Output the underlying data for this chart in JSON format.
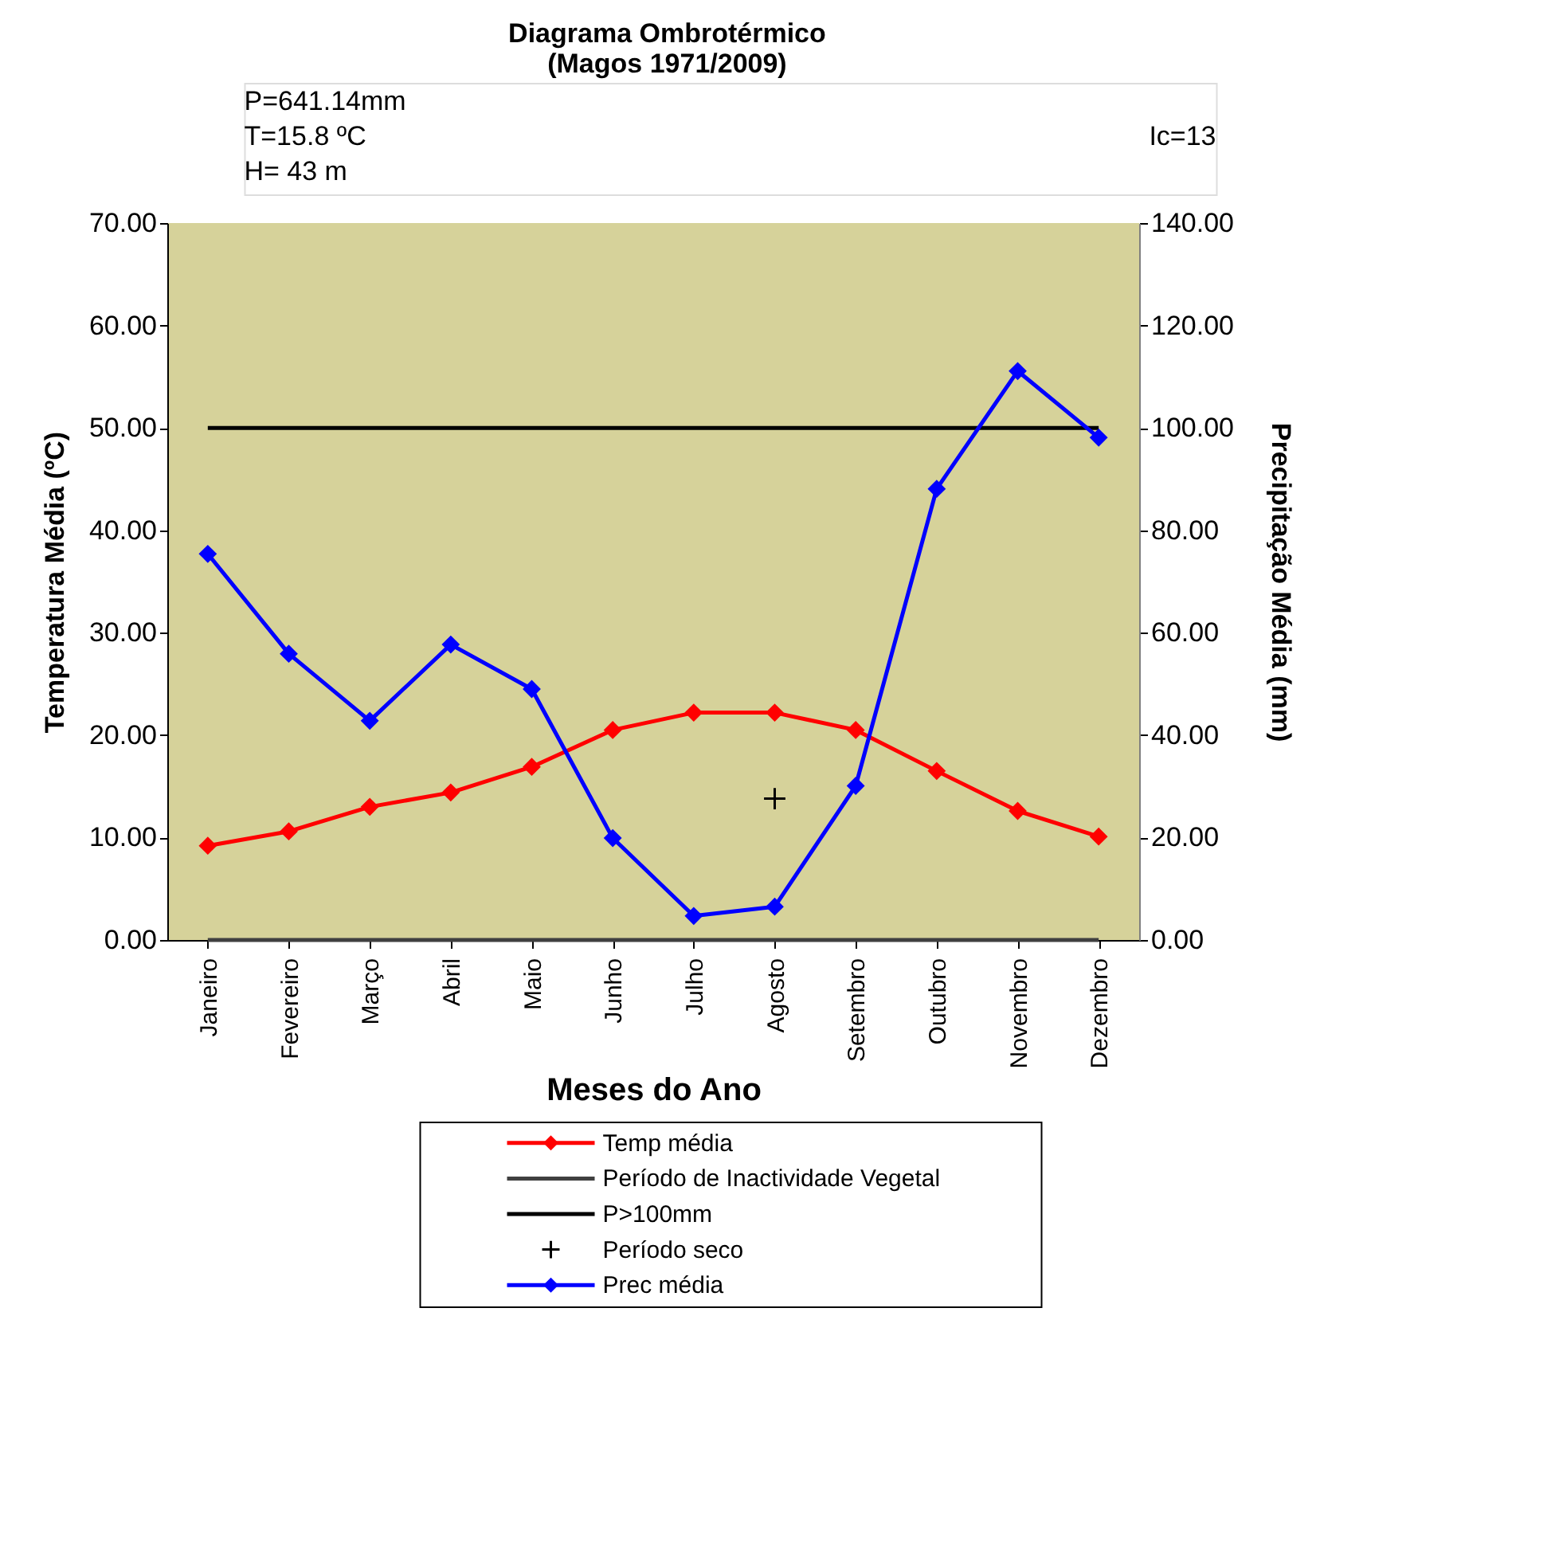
{
  "chart_data": {
    "type": "line",
    "title": "Diagrama Ombrotérmico",
    "subtitle": "(Magos 1971/2009)",
    "xlabel": "Meses do Ano",
    "ylabel": "Temperatura Média (ºC)",
    "y2label": "Precipitação Média (mm)",
    "annotations": [
      "P=641.14mm",
      "T=15.8 ºC",
      "H= 43 m",
      "Ic=13"
    ],
    "categories": [
      "Janeiro",
      "Fevereiro",
      "Março",
      "Abril",
      "Maio",
      "Junho",
      "Julho",
      "Agosto",
      "Setembro",
      "Outubro",
      "Novembro",
      "Dezembro"
    ],
    "series": [
      {
        "name": "Temp média",
        "type": "line",
        "color": "#ff0000",
        "marker": "diamond",
        "values": [
          9.2,
          10.6,
          13.0,
          14.4,
          16.9,
          20.5,
          22.2,
          22.2,
          20.5,
          16.5,
          12.6,
          10.1
        ]
      },
      {
        "name": "Período de Inactividade Vegetal",
        "type": "line",
        "color": "#404040",
        "marker": "none",
        "values": [
          0,
          0,
          0,
          0,
          0,
          0,
          0,
          0,
          0,
          0,
          0,
          0
        ]
      },
      {
        "name": "P>100mm",
        "type": "line",
        "color": "#000000",
        "marker": "none",
        "axis": "y2",
        "values": [
          100,
          100,
          100,
          100,
          100,
          100,
          100,
          100,
          100,
          100,
          100,
          100
        ]
      },
      {
        "name": "Período seco",
        "type": "scatter",
        "color": "#000000",
        "marker": "cross",
        "values": [
          null,
          null,
          null,
          null,
          null,
          null,
          null,
          13.8,
          null,
          null,
          null,
          null
        ]
      },
      {
        "name": "Prec média",
        "type": "line",
        "color": "#0000ff",
        "marker": "diamond",
        "axis": "y2",
        "values": [
          75.4,
          55.9,
          42.8,
          57.7,
          49.0,
          19.9,
          4.7,
          6.5,
          30.1,
          88.1,
          111.1,
          98.1
        ]
      }
    ],
    "ylim": [
      0,
      70
    ],
    "yticks": [
      {
        "value": 0,
        "label": "0.00"
      },
      {
        "value": 10,
        "label": "10.00"
      },
      {
        "value": 20,
        "label": "20.00"
      },
      {
        "value": 30,
        "label": "30.00"
      },
      {
        "value": 40,
        "label": "40.00"
      },
      {
        "value": 50,
        "label": "50.00"
      },
      {
        "value": 60,
        "label": "60.00"
      },
      {
        "value": 70,
        "label": "70.00"
      }
    ],
    "y2lim": [
      0,
      140
    ],
    "y2ticks": [
      {
        "value": 0,
        "label": "0.00"
      },
      {
        "value": 20,
        "label": "20.00"
      },
      {
        "value": 40,
        "label": "40.00"
      },
      {
        "value": 60,
        "label": "60.00"
      },
      {
        "value": 80,
        "label": "80.00"
      },
      {
        "value": 100,
        "label": "100.00"
      },
      {
        "value": 120,
        "label": "120.00"
      },
      {
        "value": 140,
        "label": "140.00"
      }
    ],
    "grid": false,
    "legend": "bottom",
    "line_style": "solid"
  }
}
